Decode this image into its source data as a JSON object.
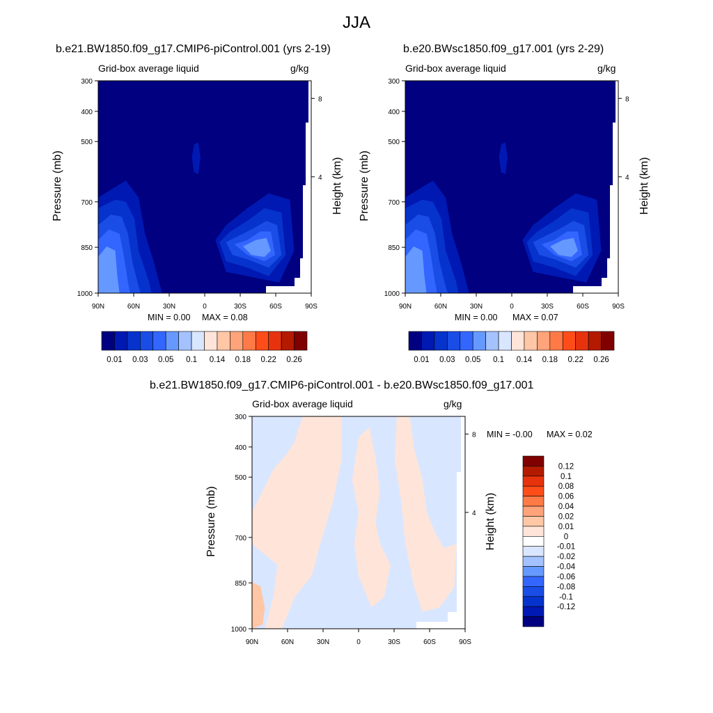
{
  "figure": {
    "title": "JJA"
  },
  "chart_data": [
    {
      "type": "heatmap",
      "title": "b.e21.BW1850.f09_g17.CMIP6-piControl.001 (yrs 2-19)",
      "left_subtitle": "Grid-box average liquid",
      "right_subtitle": "g/kg",
      "ylabel": "Pressure (mb)",
      "y2label": "Height (km)",
      "x_ticks": [
        "90N",
        "60N",
        "30N",
        "0",
        "30S",
        "60S",
        "90S"
      ],
      "y_ticks": [
        "300",
        "400",
        "500",
        "700",
        "850",
        "1000"
      ],
      "y2_ticks": [
        "8",
        "4"
      ],
      "min_text": "MIN =   0.00",
      "max_text": "MAX =   0.08",
      "colorbar": {
        "orientation": "horizontal",
        "colors": [
          "#000080",
          "#0019b3",
          "#0633cc",
          "#1a4de6",
          "#3366ff",
          "#6699ff",
          "#a3c2ff",
          "#d9e6ff",
          "#ffe5d9",
          "#ffc7a6",
          "#ffa37a",
          "#ff7a47",
          "#ff4d1a",
          "#e6330d",
          "#b31a00",
          "#800000"
        ],
        "labels": [
          "0.01",
          "0.03",
          "0.05",
          "0.1",
          "0.14",
          "0.18",
          "0.22",
          "0.26"
        ]
      }
    },
    {
      "type": "heatmap",
      "title": "b.e20.BWsc1850.f09_g17.001 (yrs 2-29)",
      "left_subtitle": "Grid-box average liquid",
      "right_subtitle": "g/kg",
      "ylabel": "Pressure (mb)",
      "y2label": "Height (km)",
      "x_ticks": [
        "90N",
        "60N",
        "30N",
        "0",
        "30S",
        "60S",
        "90S"
      ],
      "y_ticks": [
        "300",
        "400",
        "500",
        "700",
        "850",
        "1000"
      ],
      "y2_ticks": [
        "8",
        "4"
      ],
      "min_text": "MIN =   0.00",
      "max_text": "MAX =   0.07",
      "colorbar": {
        "orientation": "horizontal",
        "colors": [
          "#000080",
          "#0019b3",
          "#0633cc",
          "#1a4de6",
          "#3366ff",
          "#6699ff",
          "#a3c2ff",
          "#d9e6ff",
          "#ffe5d9",
          "#ffc7a6",
          "#ffa37a",
          "#ff7a47",
          "#ff4d1a",
          "#e6330d",
          "#b31a00",
          "#800000"
        ],
        "labels": [
          "0.01",
          "0.03",
          "0.05",
          "0.1",
          "0.14",
          "0.18",
          "0.22",
          "0.26"
        ]
      }
    },
    {
      "type": "heatmap",
      "title": "b.e21.BW1850.f09_g17.CMIP6-piControl.001 - b.e20.BWsc1850.f09_g17.001",
      "left_subtitle": "Grid-box average liquid",
      "right_subtitle": "g/kg",
      "ylabel": "Pressure (mb)",
      "y2label": "Height (km)",
      "x_ticks": [
        "90N",
        "60N",
        "30N",
        "0",
        "30S",
        "60S",
        "90S"
      ],
      "y_ticks": [
        "300",
        "400",
        "500",
        "700",
        "850",
        "1000"
      ],
      "y2_ticks": [
        "8",
        "4"
      ],
      "min_text": "MIN =  -0.00",
      "max_text": "MAX =   0.02",
      "colorbar": {
        "orientation": "vertical",
        "colors": [
          "#800000",
          "#b31a00",
          "#e6330d",
          "#ff4d1a",
          "#ff7a47",
          "#ffa37a",
          "#ffc7a6",
          "#ffe5d9",
          "#ffffff",
          "#d9e6ff",
          "#a3c2ff",
          "#6699ff",
          "#3366ff",
          "#1a4de6",
          "#0633cc",
          "#0019b3",
          "#000080"
        ],
        "labels": [
          "0.12",
          "0.1",
          "0.08",
          "0.06",
          "0.04",
          "0.02",
          "0.01",
          "0",
          "-0.01",
          "-0.02",
          "-0.04",
          "-0.06",
          "-0.08",
          "-0.1",
          "-0.12"
        ]
      }
    }
  ]
}
